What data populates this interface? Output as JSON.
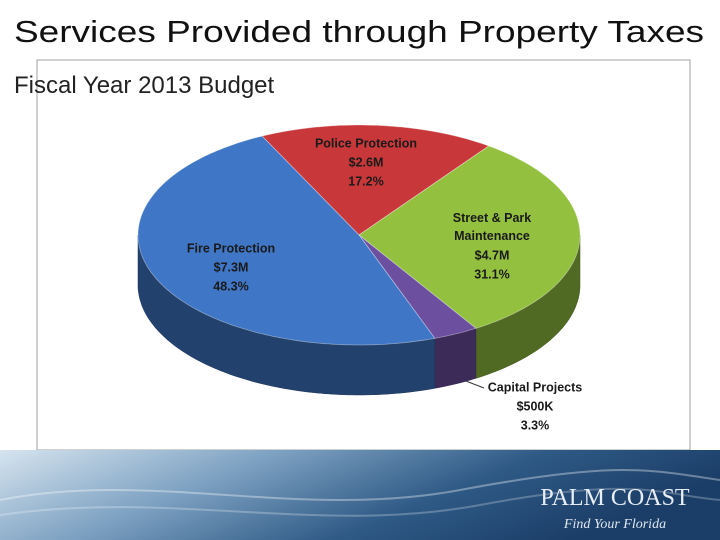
{
  "chart_data": {
    "type": "pie",
    "title": "Services Provided through Property Taxes",
    "subtitle": "Fiscal Year 2013 Budget",
    "categories": [
      "Police Protection",
      "Street & Park Maintenance",
      "Capital Projects",
      "Fire Protection"
    ],
    "values": [
      17.2,
      31.1,
      3.3,
      48.3
    ],
    "value_labels": [
      "17.2%",
      "31.1%",
      "3.3%",
      "48.3%"
    ],
    "amount_labels": [
      "$2.6M",
      "$4.7M",
      "$500K",
      "$7.3M"
    ],
    "colors": [
      "#c8383a",
      "#93c03f",
      "#6d4fa0",
      "#3f76c6"
    ]
  },
  "logo": {
    "name": "PALM COAST",
    "tagline": "Find Your Florida"
  }
}
